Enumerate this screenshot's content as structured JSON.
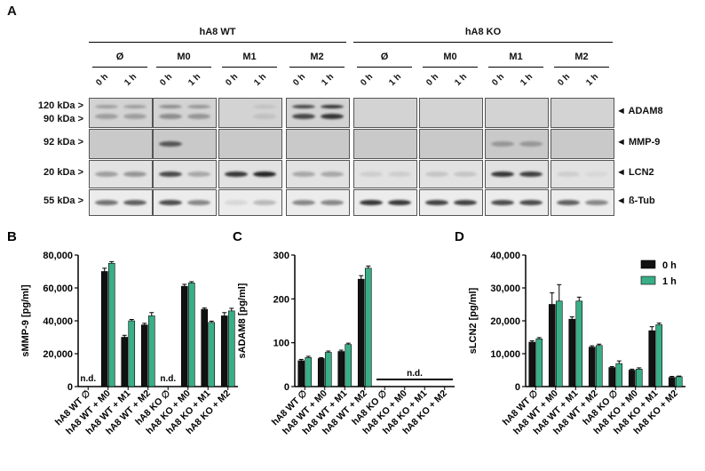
{
  "panel_a": {
    "letter": "A",
    "wt_label": "hA8 WT",
    "ko_label": "hA8 KO",
    "conditions": [
      "Ø",
      "M0",
      "M1",
      "M2",
      "Ø",
      "M0",
      "M1",
      "M2"
    ],
    "timepoints": [
      "0 h",
      "1 h"
    ],
    "rows": [
      {
        "kda": [
          "120 kDa >",
          "90 kDa >"
        ],
        "protein": "◄ ADAM8"
      },
      {
        "kda": [
          "92 kDa >"
        ],
        "protein": "◄ MMP-9"
      },
      {
        "kda": [
          "20 kDa >"
        ],
        "protein": "◄ LCN2"
      },
      {
        "kda": [
          "55 kDa >"
        ],
        "protein": "◄ ß-Tub"
      }
    ]
  },
  "chart_data": [
    {
      "type": "bar",
      "panel": "B",
      "ylabel": "sMMP-9 [pg/ml]",
      "ylim": [
        0,
        80000
      ],
      "yticks": [
        "0",
        "20,000",
        "40,000",
        "60,000",
        "80,000"
      ],
      "categories": [
        "hA8 WT ∅",
        "hA8 WT + M0",
        "hA8 WT + M1",
        "hA8 WT + M2",
        "hA8 KO ∅",
        "hA8 KO + M0",
        "hA8 KO + M1",
        "hA8 KO + M2"
      ],
      "series": [
        {
          "name": "0 h",
          "values": [
            0,
            70000,
            30000,
            37500,
            0,
            61000,
            47000,
            43000
          ],
          "errors": [
            0,
            2000,
            1200,
            1000,
            0,
            1200,
            800,
            2000
          ]
        },
        {
          "name": "1 h",
          "values": [
            0,
            75000,
            40000,
            43000,
            0,
            63000,
            39000,
            46000
          ],
          "errors": [
            0,
            1000,
            800,
            2000,
            0,
            800,
            800,
            1600
          ]
        }
      ],
      "annotations": [
        {
          "category": 0,
          "text": "n.d."
        },
        {
          "category": 4,
          "text": "n.d."
        }
      ]
    },
    {
      "type": "bar",
      "panel": "C",
      "ylabel": "sADAM8 [pg/ml]",
      "ylim": [
        0,
        300
      ],
      "yticks": [
        "0",
        "100",
        "200",
        "300"
      ],
      "categories": [
        "hA8 WT ∅",
        "hA8 WT + M0",
        "hA8 WT + M1",
        "hA8 WT + M2",
        "hA8 KO ∅",
        "hA8 KO + M0",
        "hA8 KO + M1",
        "hA8 KO + M2"
      ],
      "series": [
        {
          "name": "0 h",
          "values": [
            59,
            64,
            80,
            245,
            0,
            0,
            0,
            0
          ],
          "errors": [
            3,
            2,
            3,
            8,
            0,
            0,
            0,
            0
          ]
        },
        {
          "name": "1 h",
          "values": [
            66,
            78,
            96,
            270,
            0,
            0,
            0,
            0
          ],
          "errors": [
            3,
            3,
            3,
            5,
            0,
            0,
            0,
            0
          ]
        }
      ],
      "annotations": [
        {
          "categories": [
            4,
            7
          ],
          "text": "n.d."
        }
      ]
    },
    {
      "type": "bar",
      "panel": "D",
      "ylabel": "sLCN2 [pg/ml]",
      "ylim": [
        0,
        40000
      ],
      "yticks": [
        "0",
        "10,000",
        "20,000",
        "30,000",
        "40,000"
      ],
      "categories": [
        "hA8 WT ∅",
        "hA8 WT + M0",
        "hA8 WT + M1",
        "hA8 WT + M2",
        "hA8 KO ∅",
        "hA8 KO + M0",
        "hA8 KO + M1",
        "hA8 KO + M2"
      ],
      "series": [
        {
          "name": "0 h",
          "values": [
            13500,
            25000,
            20500,
            12000,
            5800,
            5000,
            17000,
            2800
          ],
          "errors": [
            400,
            3500,
            700,
            400,
            300,
            300,
            1200,
            300
          ]
        },
        {
          "name": "1 h",
          "values": [
            14500,
            26000,
            26000,
            12500,
            7000,
            5300,
            18800,
            3000
          ],
          "errors": [
            400,
            5000,
            1200,
            400,
            800,
            400,
            500,
            200
          ]
        }
      ],
      "legend": "top-right"
    }
  ],
  "colors": {
    "series_0": "#111111",
    "series_1": "#3aae86"
  }
}
